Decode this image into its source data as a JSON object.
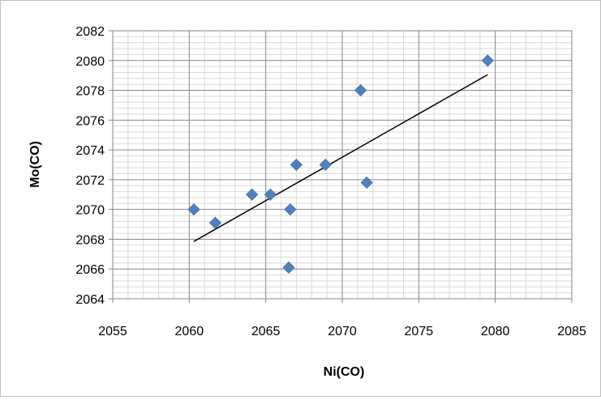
{
  "chart_data": {
    "type": "scatter",
    "title": "",
    "xlabel": "Ni(CO)",
    "ylabel": "Mo(CO)",
    "xlim": [
      2055,
      2085
    ],
    "ylim": [
      2064,
      2082
    ],
    "x_ticks": [
      2055,
      2060,
      2065,
      2070,
      2075,
      2080,
      2085
    ],
    "y_ticks": [
      2064,
      2066,
      2068,
      2070,
      2072,
      2074,
      2076,
      2078,
      2080,
      2082
    ],
    "x_tick_labels": [
      "2055",
      "2060",
      "2065",
      "2070",
      "2075",
      "2080",
      "2085"
    ],
    "y_tick_labels": [
      "2064",
      "2066",
      "2068",
      "2070",
      "2072",
      "2074",
      "2076",
      "2078",
      "2080",
      "2082"
    ],
    "grid": true,
    "legend": "none",
    "marker": "diamond",
    "marker_color": "#4F81BD",
    "trendline_color": "#000000",
    "points": [
      {
        "x": 2060.3,
        "y": 2070.0
      },
      {
        "x": 2061.7,
        "y": 2069.1
      },
      {
        "x": 2064.1,
        "y": 2071.0
      },
      {
        "x": 2065.3,
        "y": 2071.0
      },
      {
        "x": 2066.6,
        "y": 2070.0
      },
      {
        "x": 2066.5,
        "y": 2066.1
      },
      {
        "x": 2067.0,
        "y": 2073.0
      },
      {
        "x": 2068.9,
        "y": 2073.0
      },
      {
        "x": 2071.2,
        "y": 2078.0
      },
      {
        "x": 2071.6,
        "y": 2071.8
      },
      {
        "x": 2079.5,
        "y": 2080.0
      }
    ],
    "trendline": {
      "type": "linear",
      "x": [
        2060.3,
        2079.5
      ],
      "y": [
        2067.85,
        2079.05
      ]
    }
  }
}
